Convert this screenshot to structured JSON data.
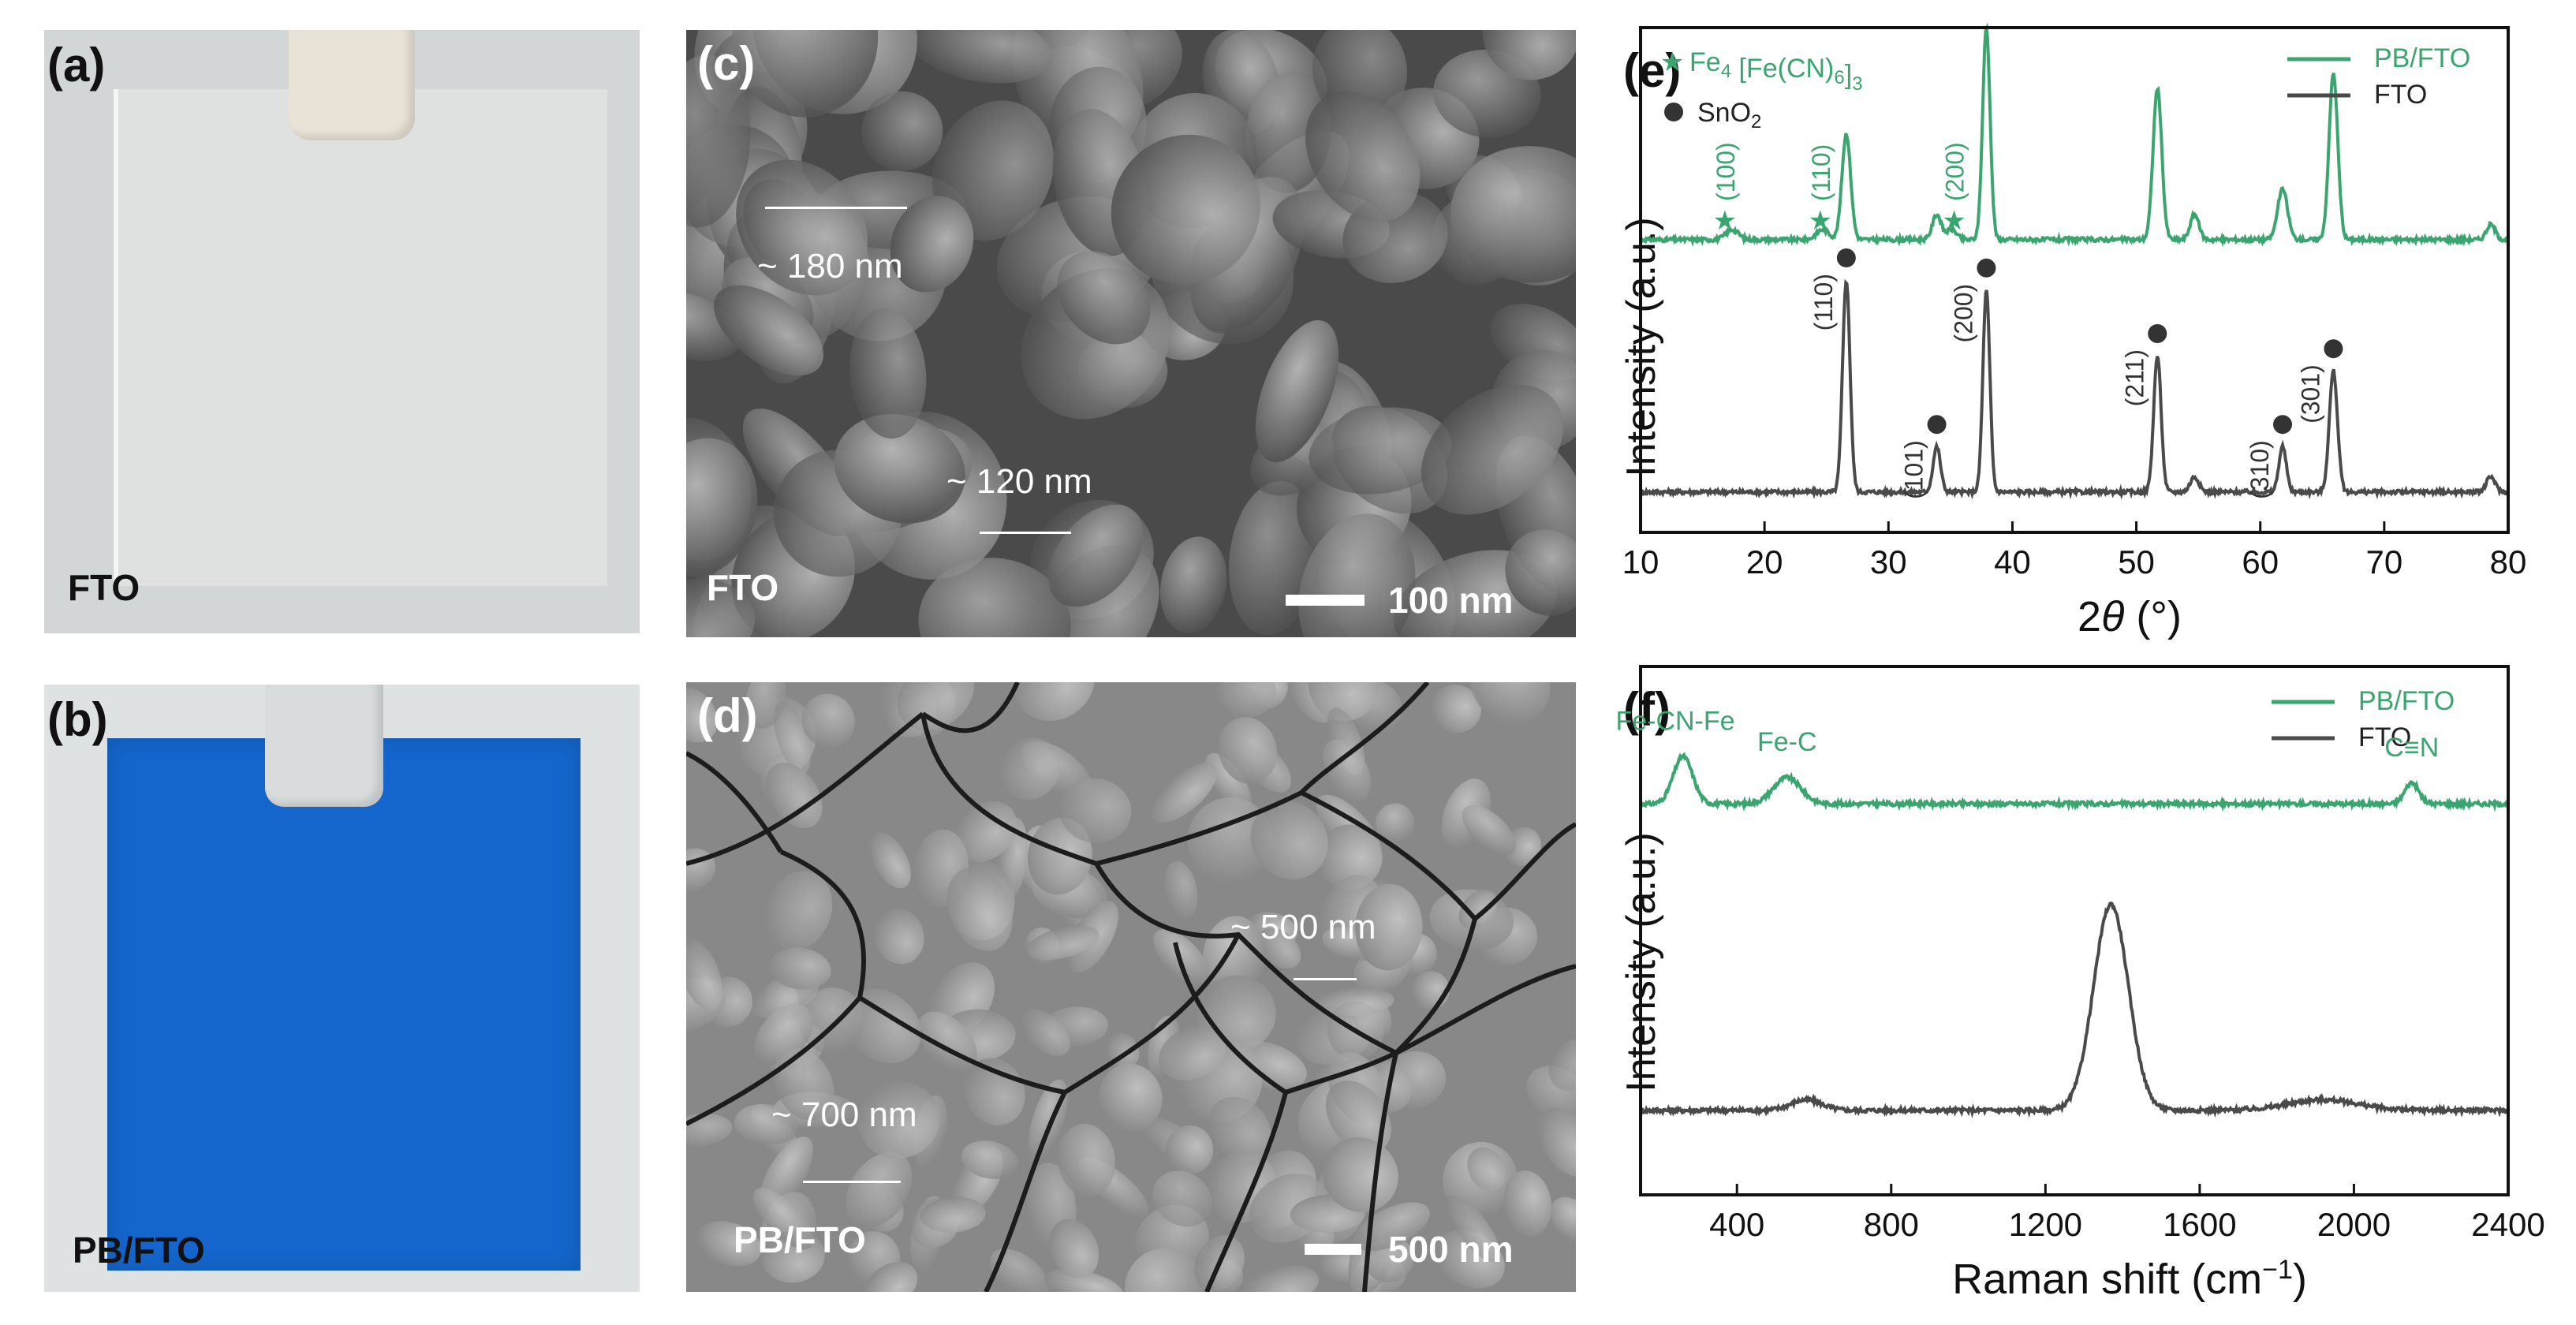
{
  "panels": {
    "a": {
      "label": "(a)",
      "caption": "FTO"
    },
    "b": {
      "label": "(b)",
      "caption": "PB/FTO"
    },
    "c": {
      "label": "(c)",
      "caption": "FTO",
      "scale_bar": "100 nm",
      "annotations": [
        "~ 180 nm",
        "~ 120 nm"
      ]
    },
    "d": {
      "label": "(d)",
      "caption": "PB/FTO",
      "scale_bar": "500 nm",
      "annotations": [
        "~ 500 nm",
        "~ 700 nm"
      ]
    }
  },
  "colors": {
    "pb": "#3aa56f",
    "fto": "#4a4a4a",
    "blue": "#1262c9"
  },
  "chart_data": [
    {
      "panel": "(e)",
      "type": "line",
      "xlabel_prefix": "2",
      "xlabel_symbol": "θ",
      "xlabel_unit": " (°)",
      "ylabel": "Intensity (a.u.)",
      "xlim": [
        10,
        80
      ],
      "xticks": [
        "10",
        "20",
        "30",
        "40",
        "50",
        "60",
        "70",
        "80"
      ],
      "legend": [
        "PB/FTO",
        "FTO"
      ],
      "markers_legend": {
        "star_formula_main": "Fe",
        "star_sub1": "4",
        "star_formula_mid": " [Fe(CN)",
        "star_sub2": "6",
        "star_formula_end": "]",
        "star_sub3": "3",
        "dot_formula_main": "SnO",
        "dot_sub": "2"
      },
      "series": [
        {
          "name": "PB/FTO",
          "baseline": 0.58,
          "peaks": [
            [
              17.4,
              0.02,
              0.5
            ],
            [
              24.7,
              0.02,
              0.5
            ],
            [
              26.6,
              0.21,
              0.35
            ],
            [
              33.9,
              0.05,
              0.35
            ],
            [
              35.1,
              0.02,
              0.4
            ],
            [
              37.9,
              0.42,
              0.3
            ],
            [
              51.7,
              0.3,
              0.35
            ],
            [
              54.7,
              0.05,
              0.35
            ],
            [
              61.8,
              0.1,
              0.4
            ],
            [
              65.9,
              0.33,
              0.35
            ],
            [
              78.6,
              0.03,
              0.35
            ]
          ]
        },
        {
          "name": "FTO",
          "baseline": 0.08,
          "peaks": [
            [
              26.6,
              0.42,
              0.3
            ],
            [
              33.9,
              0.09,
              0.3
            ],
            [
              37.9,
              0.4,
              0.28
            ],
            [
              51.7,
              0.27,
              0.3
            ],
            [
              54.7,
              0.03,
              0.35
            ],
            [
              61.8,
              0.09,
              0.3
            ],
            [
              65.9,
              0.24,
              0.33
            ],
            [
              78.6,
              0.03,
              0.35
            ]
          ]
        }
      ],
      "pb_annotations": [
        {
          "x": 16.8,
          "text": "(100)"
        },
        {
          "x": 24.5,
          "text": "(110)"
        },
        {
          "x": 35.3,
          "text": "(200)"
        }
      ],
      "fto_annotations": [
        {
          "x": 26.6,
          "text": "(110)"
        },
        {
          "x": 33.9,
          "text": "(101)"
        },
        {
          "x": 37.9,
          "text": "(200)"
        },
        {
          "x": 51.7,
          "text": "(211)"
        },
        {
          "x": 61.8,
          "text": "(310)"
        },
        {
          "x": 65.9,
          "text": "(301)"
        }
      ]
    },
    {
      "panel": "(f)",
      "type": "line",
      "xlabel_main": "Raman shift (cm",
      "xlabel_sup": "−1",
      "xlabel_end": ")",
      "ylabel": "Intensity (a.u.)",
      "xlim": [
        150,
        2400
      ],
      "xticks": [
        "400",
        "800",
        "1200",
        "1600",
        "2000",
        "2400"
      ],
      "legend": [
        "PB/FTO",
        "FTO"
      ],
      "series": [
        {
          "name": "PB/FTO",
          "baseline": 0.74,
          "peaks": [
            [
              260,
              0.09,
              25
            ],
            [
              530,
              0.05,
              35
            ],
            [
              2150,
              0.04,
              18
            ]
          ]
        },
        {
          "name": "FTO",
          "baseline": 0.16,
          "peaks": [
            [
              580,
              0.02,
              40
            ],
            [
              1370,
              0.39,
              45
            ],
            [
              1920,
              0.02,
              90
            ]
          ]
        }
      ],
      "peak_labels": [
        "Fe-CN-Fe",
        "Fe-C",
        "C≡N"
      ]
    }
  ]
}
